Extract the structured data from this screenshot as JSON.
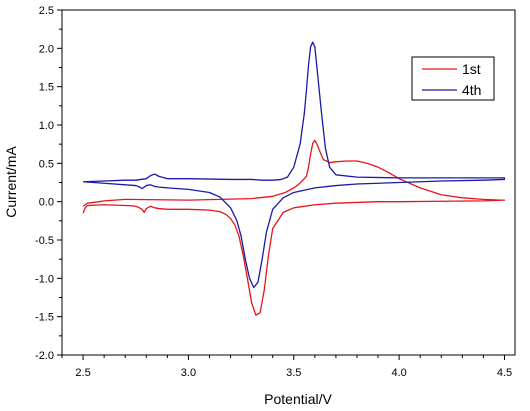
{
  "chart_data": {
    "type": "line",
    "xlabel": "Potential/V",
    "ylabel": "Current/mA",
    "xlim": [
      2.4,
      4.55
    ],
    "ylim": [
      -2.0,
      2.5
    ],
    "x_ticks": [
      "2.5",
      "3.0",
      "3.5",
      "4.0",
      "4.5"
    ],
    "y_ticks": [
      "-2.0",
      "-1.5",
      "-1.0",
      "-0.5",
      "0.0",
      "0.5",
      "1.0",
      "1.5",
      "2.0",
      "2.5"
    ],
    "legend_position": "top-right",
    "series": [
      {
        "name": "1st",
        "color": "#e8141c",
        "x": [
          2.5,
          2.51,
          2.52,
          2.56,
          2.6,
          2.7,
          2.74,
          2.76,
          2.78,
          2.79,
          2.8,
          2.82,
          2.83,
          2.84,
          2.86,
          2.9,
          3.0,
          3.1,
          3.15,
          3.18,
          3.2,
          3.22,
          3.24,
          3.26,
          3.28,
          3.3,
          3.32,
          3.34,
          3.36,
          3.38,
          3.4,
          3.45,
          3.5,
          3.6,
          3.7,
          3.8,
          3.9,
          4.0,
          4.2,
          4.4,
          4.5,
          4.5,
          4.48,
          4.4,
          4.3,
          4.2,
          4.1,
          4.0,
          3.95,
          3.9,
          3.85,
          3.8,
          3.75,
          3.7,
          3.67,
          3.64,
          3.62,
          3.61,
          3.6,
          3.59,
          3.58,
          3.57,
          3.56,
          3.55,
          3.52,
          3.5,
          3.46,
          3.4,
          3.3,
          3.0,
          2.7,
          2.6,
          2.55,
          2.52,
          2.51,
          2.5
        ],
        "y": [
          -0.15,
          -0.08,
          -0.05,
          -0.045,
          -0.04,
          -0.05,
          -0.055,
          -0.07,
          -0.1,
          -0.14,
          -0.09,
          -0.06,
          -0.07,
          -0.08,
          -0.09,
          -0.1,
          -0.1,
          -0.11,
          -0.13,
          -0.17,
          -0.22,
          -0.3,
          -0.45,
          -0.7,
          -1.0,
          -1.32,
          -1.48,
          -1.45,
          -1.15,
          -0.7,
          -0.35,
          -0.14,
          -0.08,
          -0.04,
          -0.02,
          -0.01,
          0.0,
          0.0,
          0.005,
          0.01,
          0.02,
          0.02,
          0.02,
          0.03,
          0.05,
          0.09,
          0.18,
          0.3,
          0.38,
          0.45,
          0.5,
          0.53,
          0.53,
          0.52,
          0.51,
          0.55,
          0.68,
          0.75,
          0.8,
          0.76,
          0.62,
          0.45,
          0.33,
          0.3,
          0.22,
          0.18,
          0.12,
          0.07,
          0.04,
          0.02,
          0.03,
          0.01,
          -0.01,
          -0.02,
          -0.04,
          -0.06
        ]
      },
      {
        "name": "4th",
        "color": "#1a1aa8",
        "x": [
          2.5,
          2.6,
          2.7,
          2.75,
          2.77,
          2.78,
          2.8,
          2.82,
          2.84,
          2.86,
          2.9,
          3.0,
          3.1,
          3.15,
          3.2,
          3.23,
          3.25,
          3.27,
          3.29,
          3.31,
          3.33,
          3.35,
          3.37,
          3.4,
          3.45,
          3.5,
          3.6,
          3.7,
          3.8,
          4.0,
          4.2,
          4.4,
          4.5,
          4.5,
          4.4,
          4.2,
          4.0,
          3.8,
          3.7,
          3.67,
          3.65,
          3.63,
          3.61,
          3.6,
          3.59,
          3.58,
          3.57,
          3.56,
          3.55,
          3.53,
          3.5,
          3.47,
          3.44,
          3.4,
          3.35,
          3.3,
          3.2,
          3.0,
          2.9,
          2.86,
          2.84,
          2.82,
          2.8,
          2.75,
          2.7,
          2.6,
          2.5
        ],
        "y": [
          0.26,
          0.24,
          0.22,
          0.21,
          0.19,
          0.17,
          0.21,
          0.22,
          0.2,
          0.19,
          0.18,
          0.16,
          0.12,
          0.06,
          -0.08,
          -0.25,
          -0.45,
          -0.75,
          -1.0,
          -1.12,
          -1.05,
          -0.75,
          -0.4,
          -0.1,
          0.05,
          0.12,
          0.18,
          0.21,
          0.23,
          0.25,
          0.27,
          0.28,
          0.29,
          0.31,
          0.31,
          0.31,
          0.31,
          0.32,
          0.35,
          0.45,
          0.7,
          1.2,
          1.75,
          2.02,
          2.08,
          2.02,
          1.78,
          1.45,
          1.15,
          0.75,
          0.45,
          0.32,
          0.29,
          0.28,
          0.28,
          0.29,
          0.29,
          0.3,
          0.3,
          0.33,
          0.36,
          0.34,
          0.3,
          0.28,
          0.28,
          0.27,
          0.26
        ]
      }
    ]
  }
}
